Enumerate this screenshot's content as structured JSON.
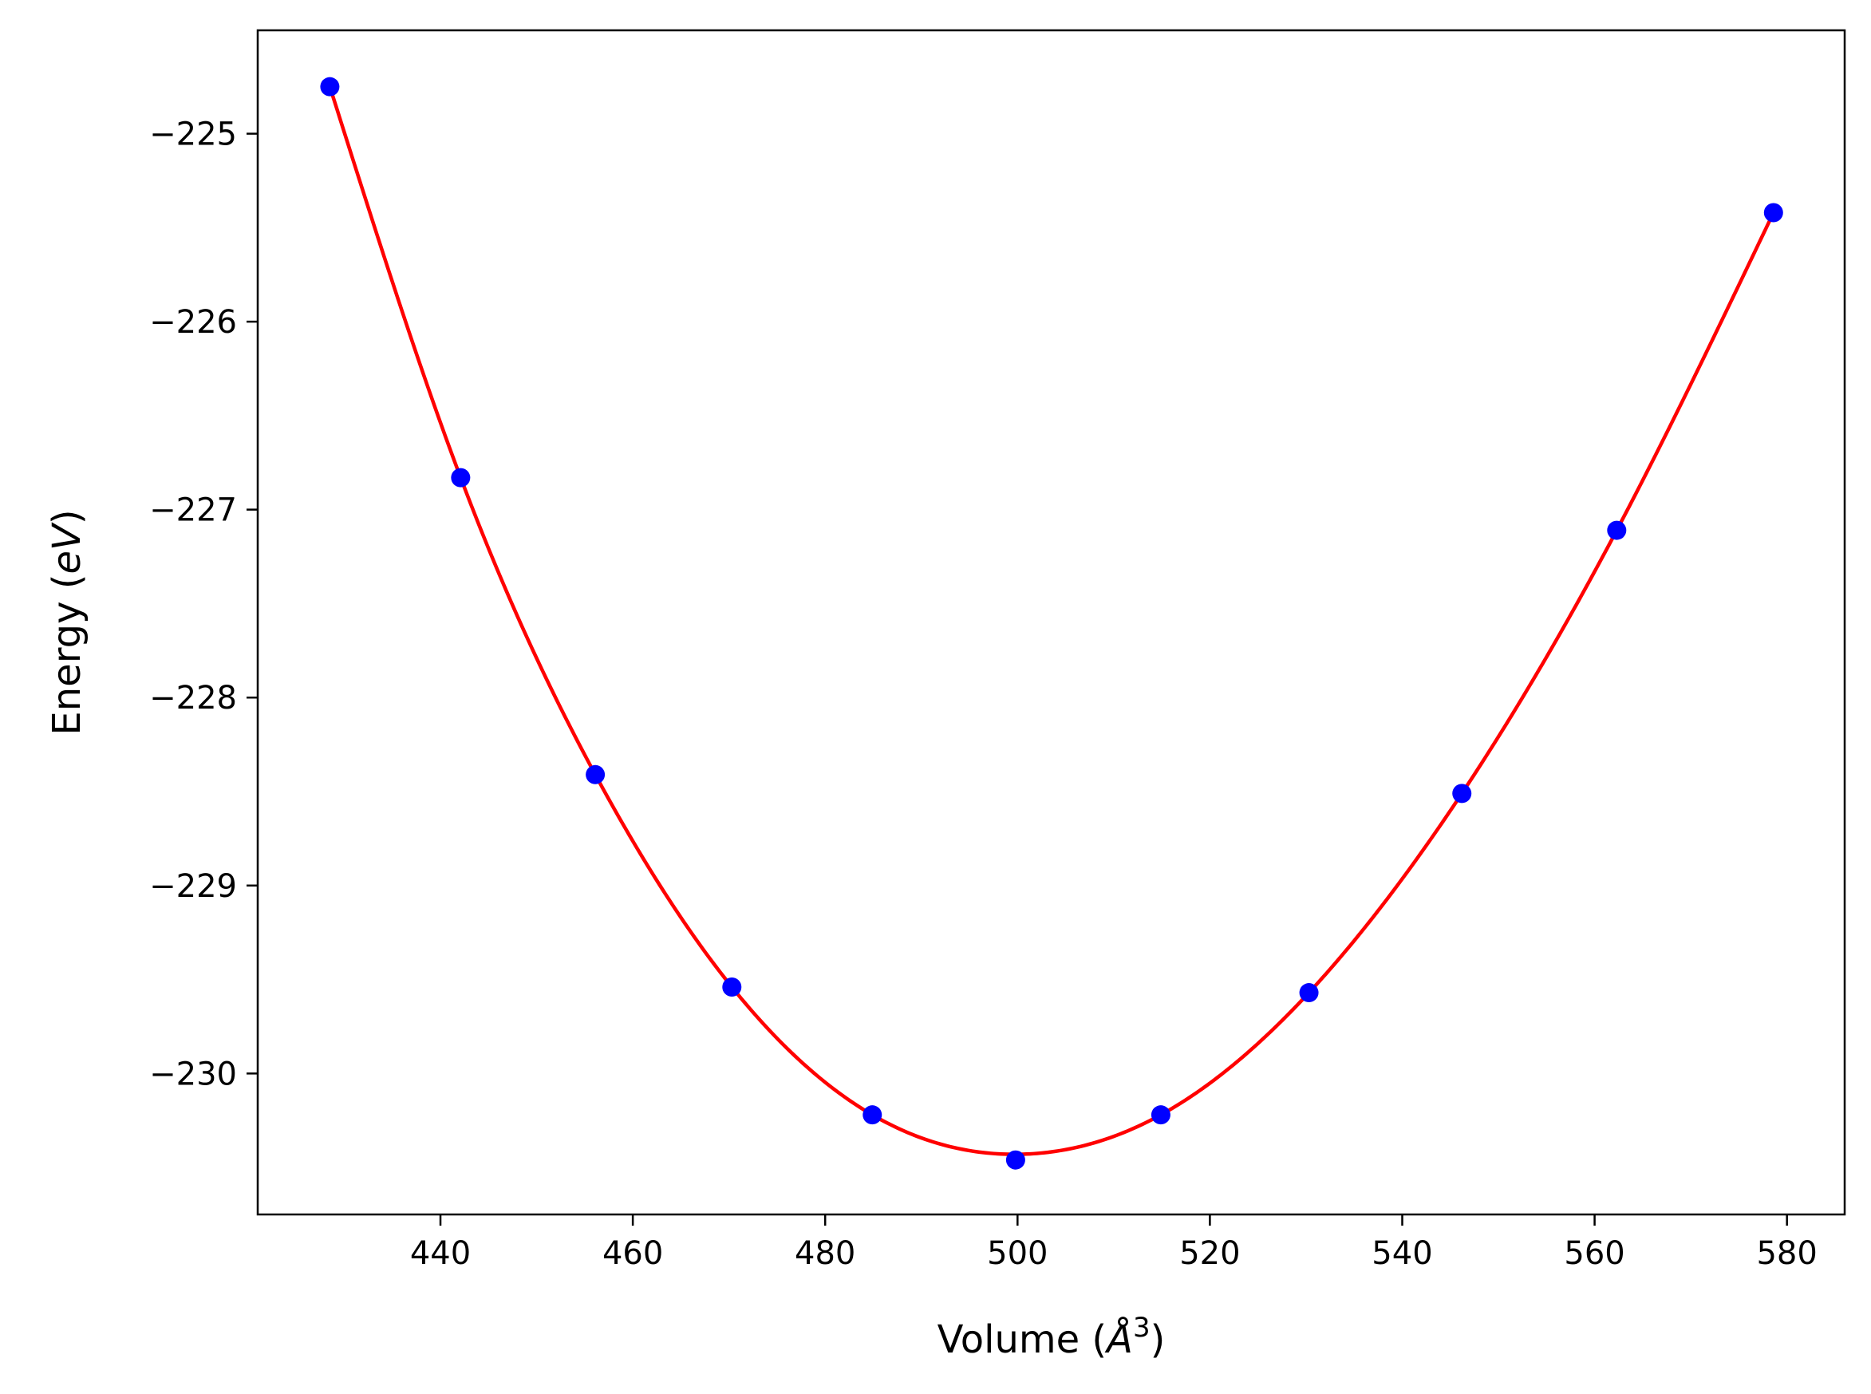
{
  "chart_data": {
    "type": "scatter",
    "title": "",
    "xlabel": {
      "prefix": "Volume (",
      "symbol": "Å",
      "superscript": "3",
      "suffix": ")"
    },
    "ylabel": {
      "prefix": "Energy (",
      "italic": "eV",
      "suffix": ")"
    },
    "xlim": [
      421,
      586
    ],
    "ylim": [
      -230.75,
      -224.45
    ],
    "xticks": [
      440,
      460,
      480,
      500,
      520,
      540,
      560,
      580
    ],
    "yticks": [
      -225,
      -226,
      -227,
      -228,
      -229,
      -230
    ],
    "xtick_labels": [
      "440",
      "460",
      "480",
      "500",
      "520",
      "540",
      "560",
      "580"
    ],
    "ytick_labels": [
      "−225",
      "−226",
      "−227",
      "−228",
      "−229",
      "−230"
    ],
    "grid": false,
    "series": [
      {
        "kind": "points",
        "color": "#0000ff",
        "x": [
          428.5,
          442.1,
          456.1,
          470.3,
          484.9,
          499.8,
          514.9,
          530.3,
          546.2,
          562.3,
          578.6
        ],
        "y": [
          -224.75,
          -226.83,
          -228.41,
          -229.54,
          -230.22,
          -230.46,
          -230.22,
          -229.57,
          -228.51,
          -227.11,
          -225.42
        ]
      },
      {
        "kind": "fit-line",
        "color": "#ff0000",
        "x": [
          428.5,
          442.1,
          456.1,
          470.3,
          484.9,
          499.8,
          514.9,
          530.3,
          546.2,
          562.3,
          578.6
        ],
        "y": [
          -224.75,
          -226.83,
          -228.41,
          -229.54,
          -230.22,
          -230.43,
          -230.22,
          -229.57,
          -228.51,
          -227.11,
          -225.42
        ]
      }
    ]
  }
}
